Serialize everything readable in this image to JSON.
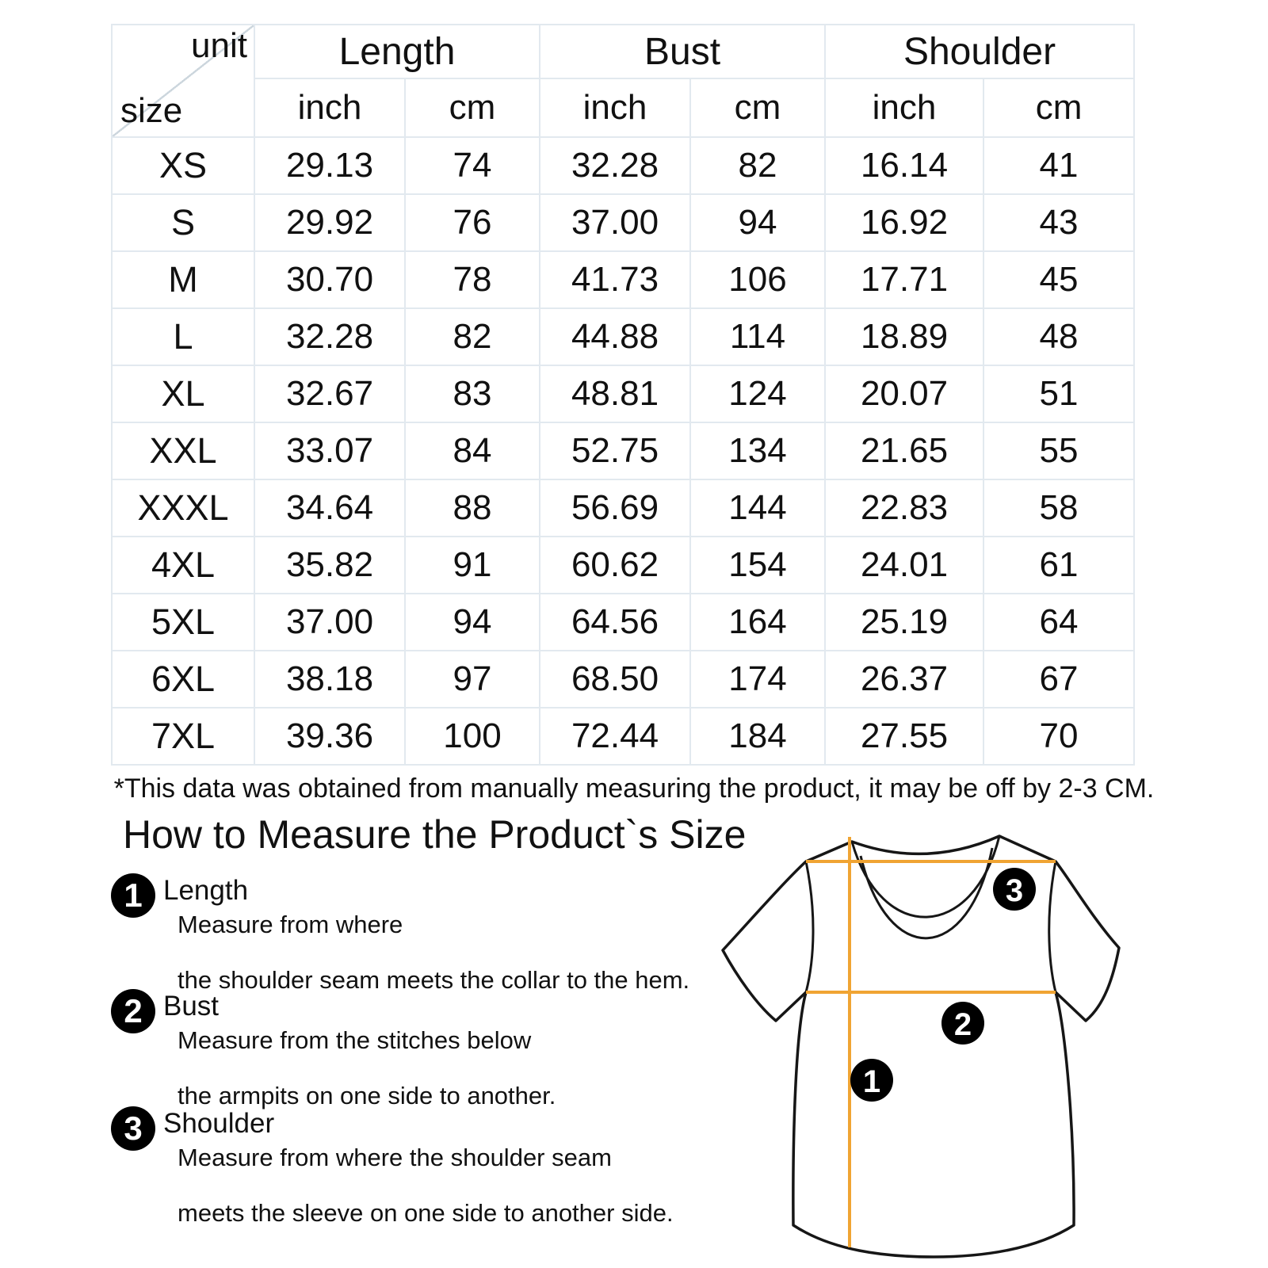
{
  "table": {
    "corner_top": "unit",
    "corner_bottom": "size",
    "groups": [
      {
        "label": "Length"
      },
      {
        "label": "Bust"
      },
      {
        "label": "Shoulder"
      }
    ],
    "unit_headers": [
      "inch",
      "cm",
      "inch",
      "cm",
      "inch",
      "cm"
    ],
    "rows": [
      {
        "size": "XS",
        "cells": [
          "29.13",
          "74",
          "32.28",
          "82",
          "16.14",
          "41"
        ]
      },
      {
        "size": "S",
        "cells": [
          "29.92",
          "76",
          "37.00",
          "94",
          "16.92",
          "43"
        ]
      },
      {
        "size": "M",
        "cells": [
          "30.70",
          "78",
          "41.73",
          "106",
          "17.71",
          "45"
        ]
      },
      {
        "size": "L",
        "cells": [
          "32.28",
          "82",
          "44.88",
          "114",
          "18.89",
          "48"
        ]
      },
      {
        "size": "XL",
        "cells": [
          "32.67",
          "83",
          "48.81",
          "124",
          "20.07",
          "51"
        ]
      },
      {
        "size": "XXL",
        "cells": [
          "33.07",
          "84",
          "52.75",
          "134",
          "21.65",
          "55"
        ]
      },
      {
        "size": "XXXL",
        "cells": [
          "34.64",
          "88",
          "56.69",
          "144",
          "22.83",
          "58"
        ]
      },
      {
        "size": "4XL",
        "cells": [
          "35.82",
          "91",
          "60.62",
          "154",
          "24.01",
          "61"
        ]
      },
      {
        "size": "5XL",
        "cells": [
          "37.00",
          "94",
          "64.56",
          "164",
          "25.19",
          "64"
        ]
      },
      {
        "size": "6XL",
        "cells": [
          "38.18",
          "97",
          "68.50",
          "174",
          "26.37",
          "67"
        ]
      },
      {
        "size": "7XL",
        "cells": [
          "39.36",
          "100",
          "72.44",
          "184",
          "27.55",
          "70"
        ]
      }
    ]
  },
  "note": "*This data was obtained from manually measuring the product, it may be off by 2-3 CM.",
  "how_to": {
    "title": "How to Measure the Product`s Size",
    "steps": [
      {
        "num": "1",
        "label": "Length",
        "lines": [
          "Measure from where",
          "the shoulder seam meets the collar to the hem."
        ]
      },
      {
        "num": "2",
        "label": "Bust",
        "lines": [
          "Measure from the stitches below",
          "the armpits on one side to another."
        ]
      },
      {
        "num": "3",
        "label": "Shoulder",
        "lines": [
          "Measure from where the shoulder seam",
          "meets the sleeve on one side to another side."
        ]
      }
    ]
  },
  "diagram": {
    "markers": [
      "1",
      "2",
      "3"
    ],
    "line_color": "#F0A433",
    "outline_color": "#161616"
  },
  "colors": {
    "text": "#111111",
    "table_border": "#E2E9EF",
    "badge_bg": "#000000",
    "accent": "#F0A433"
  }
}
